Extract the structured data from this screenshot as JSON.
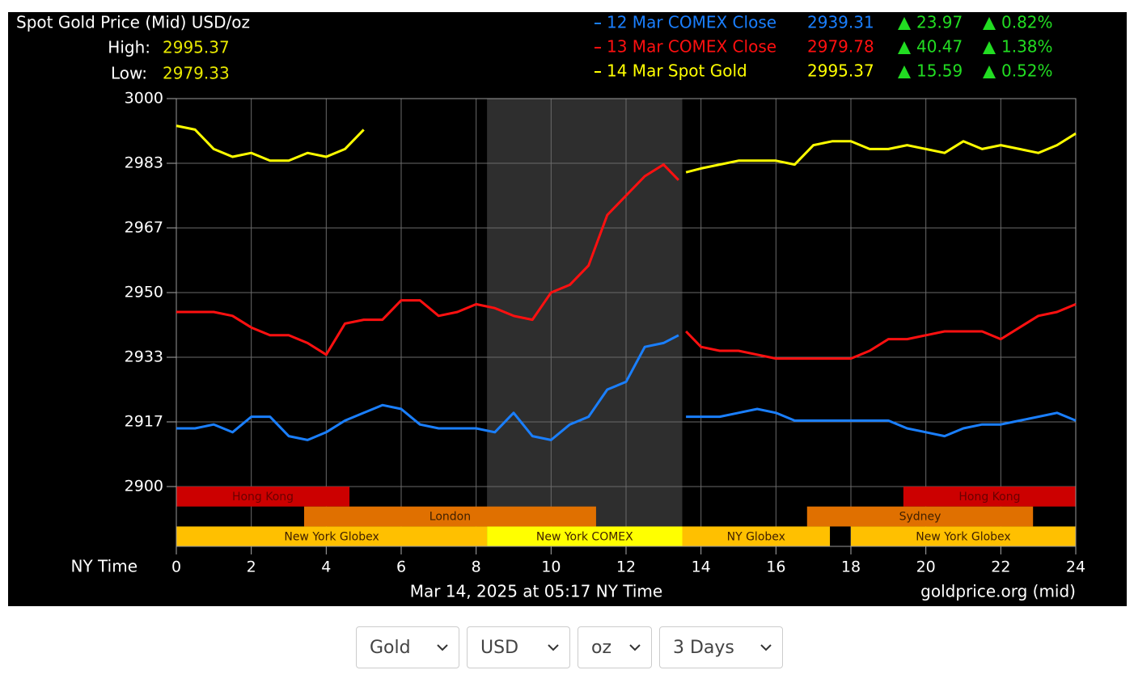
{
  "chart_data": {
    "type": "line",
    "title": "Spot Gold Price (Mid) USD/oz",
    "high_label": "High:",
    "high": "2995.37",
    "low_label": "Low:",
    "low": "2979.33",
    "xlabel": "NY Time",
    "footer": "Mar 14, 2025 at 05:17 NY Time",
    "source": "goldprice.org (mid)",
    "xlim": [
      0,
      24
    ],
    "xticks": [
      0,
      2,
      4,
      6,
      8,
      10,
      12,
      14,
      16,
      18,
      20,
      22,
      24
    ],
    "ylim": [
      2900,
      3000
    ],
    "yticks": [
      3000,
      {
        "value": 2983.33,
        "label": "2983"
      },
      {
        "value": 2966.67,
        "label": "2967"
      },
      2950,
      {
        "value": 2933.33,
        "label": "2933"
      },
      {
        "value": 2916.67,
        "label": "2917"
      },
      2900
    ],
    "grid": true,
    "highlight": [
      8.29,
      13.5
    ],
    "x": [
      0,
      0.5,
      1,
      1.5,
      2,
      2.5,
      3,
      3.5,
      4,
      4.5,
      5,
      5.5,
      6,
      6.5,
      7,
      7.5,
      8,
      8.5,
      9,
      9.5,
      10,
      10.5,
      11,
      11.5,
      12,
      12.5,
      13,
      13.4,
      13.5,
      13.6,
      14,
      14.5,
      15,
      15.5,
      16,
      16.5,
      17,
      17.5,
      18,
      18.5,
      19,
      19.5,
      20,
      20.5,
      21,
      21.5,
      22,
      22.5,
      23,
      23.5,
      24
    ],
    "series": [
      {
        "name": "12 Mar COMEX Close",
        "color": "#1a7fff",
        "price": "2939.31",
        "change": "23.97",
        "change_pct": "0.82%",
        "values": [
          2915,
          2915,
          2916,
          2914,
          2918,
          2918,
          2913,
          2912,
          2914,
          2917,
          2919,
          2921,
          2920,
          2916,
          2915,
          2915,
          2915,
          2914,
          2919,
          2913,
          2912,
          2916,
          2918,
          2925,
          2927,
          2936,
          2937,
          2939,
          null,
          2918,
          2918,
          2918,
          2919,
          2920,
          2919,
          2917,
          2917,
          2917,
          2917,
          2917,
          2917,
          2915,
          2914,
          2913,
          2915,
          2916,
          2916,
          2917,
          2918,
          2919,
          2917
        ]
      },
      {
        "name": "13 Mar COMEX Close",
        "color": "#ff1010",
        "price": "2979.78",
        "change": "40.47",
        "change_pct": "1.38%",
        "values": [
          2945,
          2945,
          2945,
          2944,
          2941,
          2939,
          2939,
          2937,
          2934,
          2942,
          2943,
          2943,
          2948,
          2948,
          2944,
          2945,
          2947,
          2946,
          2944,
          2943,
          2950,
          2952,
          2957,
          2970,
          2975,
          2980,
          2983,
          2979,
          null,
          2940,
          2936,
          2935,
          2935,
          2934,
          2933,
          2933,
          2933,
          2933,
          2933,
          2935,
          2938,
          2938,
          2939,
          2940,
          2940,
          2940,
          2938,
          2941,
          2944,
          2945,
          2947
        ]
      },
      {
        "name": "14 Mar Spot Gold",
        "color": "#ffff00",
        "price": "2995.37",
        "change": "15.59",
        "change_pct": "0.52%",
        "values": [
          2993,
          2992,
          2987,
          2985,
          2986,
          2984,
          2984,
          2986,
          2985,
          2987,
          2992,
          null,
          null,
          null,
          null,
          null,
          null,
          null,
          null,
          null,
          null,
          null,
          null,
          null,
          null,
          null,
          null,
          null,
          null,
          2981,
          2982,
          2983,
          2984,
          2984,
          2984,
          2983,
          2988,
          2989,
          2989,
          2987,
          2987,
          2988,
          2987,
          2986,
          2989,
          2987,
          2988,
          2987,
          2986,
          2988,
          2991
        ]
      }
    ],
    "sessions": [
      [
        {
          "label": "Hong Kong",
          "start": 0,
          "end": 4.62,
          "color": "#cc0000"
        },
        {
          "label": "Hong Kong",
          "start": 19.4,
          "end": 24,
          "color": "#cc0000"
        }
      ],
      [
        {
          "label": "London",
          "start": 3.41,
          "end": 11.2,
          "color": "#e07000"
        },
        {
          "label": "Sydney",
          "start": 16.83,
          "end": 22.86,
          "color": "#e07000"
        }
      ],
      [
        {
          "label": "New York Globex",
          "start": 0,
          "end": 8.29,
          "color": "#ffc000"
        },
        {
          "label": "New York COMEX",
          "start": 8.29,
          "end": 13.5,
          "color": "#ffff00"
        },
        {
          "label": "NY Globex",
          "start": 13.5,
          "end": 17.44,
          "color": "#ffc000"
        },
        {
          "label": "New York Globex",
          "start": 18.0,
          "end": 24,
          "color": "#ffc000"
        }
      ]
    ]
  },
  "controls": [
    "Gold",
    "USD",
    "oz",
    "3 Days"
  ]
}
